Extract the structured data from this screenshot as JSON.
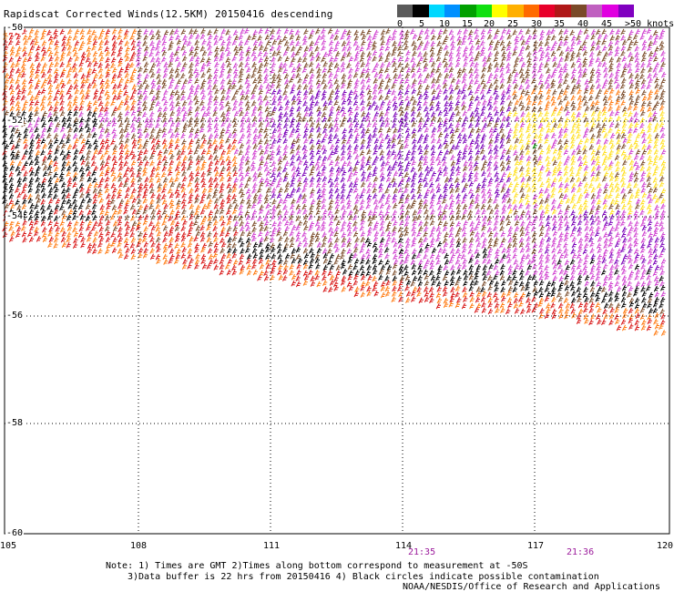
{
  "title": "Rapidscat Corrected Winds(12.5KM) 20150416 descending",
  "wind_scale": {
    "unit_label": ">50 knots",
    "tick_labels": [
      "0",
      "5",
      "10",
      "15",
      "20",
      "25",
      "30",
      "35",
      "40",
      "45"
    ],
    "colors": [
      "#5a5a5a",
      "#000000",
      "#00d8ff",
      "#0090ff",
      "#00a000",
      "#10e010",
      "#ffff00",
      "#ffb000",
      "#ff6a00",
      "#e8002a",
      "#b01818",
      "#7a4a28",
      "#c060c0",
      "#e000e0",
      "#8000c0"
    ]
  },
  "map": {
    "lat_labels": [
      "-50",
      "-52",
      "-54",
      "-56",
      "-58",
      "-60"
    ],
    "lon_labels": [
      "105",
      "108",
      "111",
      "114",
      "117",
      "120"
    ],
    "time_labels": [
      "21:35",
      "21:36"
    ],
    "swath_colors": {
      "black": "#000000",
      "red": "#d81414",
      "orange": "#ff7a10",
      "yellow": "#ffe020",
      "brown": "#7a4a28",
      "magenta": "#d040d0",
      "purple": "#7a00b8",
      "green": "#009000"
    }
  },
  "notes": {
    "line1": "Note: 1) Times are GMT 2)Times along bottom correspond to measurement at -50S",
    "line2": "3)Data buffer is 22 hrs from 20150416 4) Black circles indicate possible contamination",
    "credit": "NOAA/NESDIS/Office of Research and Applications"
  }
}
